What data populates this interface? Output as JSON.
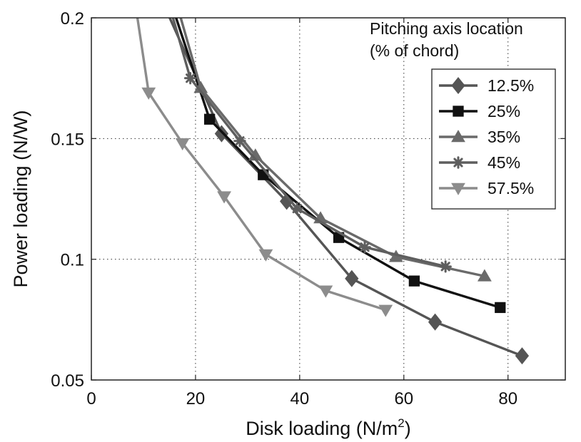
{
  "chart_data": {
    "type": "line",
    "xlabel": "Disk loading (N/m",
    "xlabel_sup": "2",
    "xlabel_close": ")",
    "ylabel": "Power loading (N/W)",
    "xlim": [
      0,
      91
    ],
    "ylim": [
      0.05,
      0.2
    ],
    "xticks": [
      0,
      20,
      40,
      60,
      80
    ],
    "xtick_labels": [
      "0",
      "20",
      "40",
      "60",
      "80"
    ],
    "yticks": [
      0.05,
      0.1,
      0.15,
      0.2
    ],
    "ytick_labels": [
      "0.05",
      "0.1",
      "0.15",
      "0.2"
    ],
    "grid": true,
    "legend_position": "right",
    "annotation": [
      "Pitching axis location",
      "(% of chord)"
    ],
    "series": [
      {
        "name": "12.5%",
        "marker": "diamond",
        "color": "#555555",
        "points": [
          [
            14.0,
            0.205
          ],
          [
            25.0,
            0.152
          ],
          [
            37.5,
            0.124
          ],
          [
            50.0,
            0.092
          ],
          [
            66.0,
            0.074
          ],
          [
            82.7,
            0.06
          ]
        ]
      },
      {
        "name": "25%",
        "marker": "square",
        "color": "#111111",
        "points": [
          [
            15.5,
            0.205
          ],
          [
            22.7,
            0.158
          ],
          [
            33.0,
            0.135
          ],
          [
            47.5,
            0.109
          ],
          [
            62.0,
            0.091
          ],
          [
            78.5,
            0.08
          ]
        ]
      },
      {
        "name": "35%",
        "marker": "triangle-up",
        "color": "#6a6a6a",
        "points": [
          [
            16.5,
            0.205
          ],
          [
            21.0,
            0.171
          ],
          [
            31.5,
            0.143
          ],
          [
            44.0,
            0.117
          ],
          [
            58.5,
            0.101
          ],
          [
            75.5,
            0.093
          ]
        ]
      },
      {
        "name": "45%",
        "marker": "asterisk",
        "color": "#5e5e5e",
        "points": [
          [
            15.0,
            0.205
          ],
          [
            19.0,
            0.175
          ],
          [
            28.5,
            0.149
          ],
          [
            39.5,
            0.121
          ],
          [
            52.5,
            0.105
          ],
          [
            68.0,
            0.097
          ]
        ]
      },
      {
        "name": "57.5%",
        "marker": "triangle-down",
        "color": "#8c8c8c",
        "points": [
          [
            8.5,
            0.205
          ],
          [
            11.0,
            0.169
          ],
          [
            17.5,
            0.148
          ],
          [
            25.5,
            0.126
          ],
          [
            33.5,
            0.102
          ],
          [
            45.0,
            0.087
          ],
          [
            56.5,
            0.079
          ]
        ]
      }
    ]
  }
}
